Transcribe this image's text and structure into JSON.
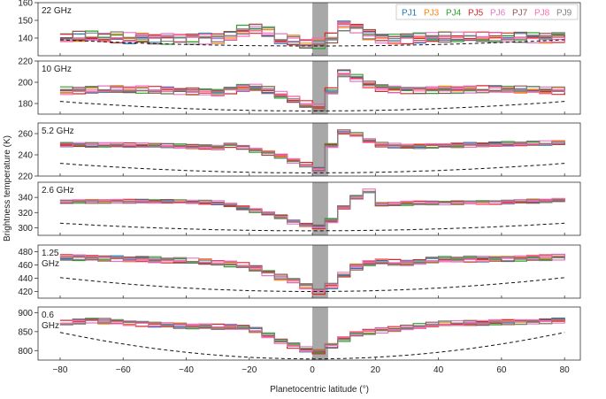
{
  "chart_data": {
    "type": "line",
    "xlabel": "Planetocentric latitude (°)",
    "ylabel": "Brightness temperature (K)",
    "xlim": [
      -87,
      85
    ],
    "x_ticks": [
      -80,
      -60,
      -40,
      -20,
      0,
      20,
      40,
      60,
      80
    ],
    "shaded_region": [
      0,
      5
    ],
    "legend": {
      "placement": "top-right"
    },
    "series_styles": [
      {
        "name": "PJ1",
        "color": "#1f77b4"
      },
      {
        "name": "PJ3",
        "color": "#ff7f0e"
      },
      {
        "name": "PJ4",
        "color": "#2ca02c"
      },
      {
        "name": "PJ5",
        "color": "#d62728"
      },
      {
        "name": "PJ6",
        "color": "#e377c2"
      },
      {
        "name": "PJ7",
        "color": "#8c564b"
      },
      {
        "name": "PJ8",
        "color": "#ff69b4"
      },
      {
        "name": "PJ9",
        "color": "#7f7f7f"
      }
    ],
    "panels": [
      {
        "label": "22 GHz",
        "ylim": [
          130,
          160
        ],
        "yticks": [
          140,
          150,
          160
        ],
        "baseline": {
          "x": [
            -80,
            0,
            80
          ],
          "y": [
            139,
            135.5,
            139
          ]
        },
        "profile": {
          "x": [
            -80,
            -70,
            -60,
            -40,
            -30,
            -25,
            -20,
            -15,
            -10,
            -5,
            0,
            5,
            10,
            15,
            20,
            30,
            40,
            60,
            80
          ],
          "y": [
            140,
            140.5,
            140,
            140,
            140,
            141,
            146,
            144,
            139,
            138,
            136,
            138,
            147,
            146,
            140,
            140,
            140.5,
            140,
            140.5
          ]
        },
        "spread": 3.5
      },
      {
        "label": "10 GHz",
        "ylim": [
          170,
          220
        ],
        "yticks": [
          180,
          200,
          220
        ],
        "baseline": {
          "x": [
            -80,
            0,
            80
          ],
          "y": [
            182,
            173,
            182
          ]
        },
        "profile": {
          "x": [
            -80,
            -60,
            -40,
            -30,
            -20,
            -15,
            -10,
            -5,
            0,
            3,
            5,
            8,
            10,
            15,
            20,
            30,
            40,
            60,
            80
          ],
          "y": [
            192,
            193,
            192,
            191,
            196,
            194,
            188,
            182,
            177,
            175,
            184,
            206,
            208,
            203,
            195,
            193,
            193,
            193,
            192
          ]
        },
        "spread": 4
      },
      {
        "label": "5.2 GHz",
        "ylim": [
          220,
          270
        ],
        "yticks": [
          220,
          240,
          260
        ],
        "baseline": {
          "x": [
            -80,
            0,
            80
          ],
          "y": [
            232,
            223,
            232
          ]
        },
        "profile": {
          "x": [
            -80,
            -60,
            -40,
            -30,
            -25,
            -20,
            -10,
            -5,
            0,
            3,
            5,
            7,
            10,
            15,
            20,
            30,
            40,
            60,
            80
          ],
          "y": [
            250,
            249,
            248,
            247,
            250,
            246,
            239,
            233,
            229,
            224,
            235,
            262,
            261,
            258,
            250,
            248,
            249,
            250,
            251
          ]
        },
        "spread": 2.5
      },
      {
        "label": "2.6 GHz",
        "ylim": [
          290,
          360
        ],
        "yticks": [
          300,
          320,
          340
        ],
        "baseline": {
          "x": [
            -80,
            0,
            80
          ],
          "y": [
            306,
            296,
            306
          ]
        },
        "profile": {
          "x": [
            -80,
            -60,
            -40,
            -30,
            -20,
            -10,
            -5,
            0,
            3,
            5,
            10,
            15,
            18,
            20,
            30,
            40,
            60,
            80
          ],
          "y": [
            335,
            335,
            334,
            333,
            325,
            315,
            306,
            303,
            300,
            305,
            327,
            343,
            348,
            330,
            332,
            333,
            334,
            336
          ]
        },
        "spread": 3
      },
      {
        "label": "1.25\nGHz",
        "ylim": [
          410,
          490
        ],
        "yticks": [
          420,
          440,
          460,
          480
        ],
        "baseline": {
          "x": [
            -80,
            0,
            80
          ],
          "y": [
            441,
            420,
            441
          ]
        },
        "profile": {
          "x": [
            -80,
            -60,
            -40,
            -30,
            -20,
            -10,
            -5,
            0,
            3,
            5,
            10,
            15,
            20,
            30,
            40,
            60,
            80
          ],
          "y": [
            472,
            470,
            466,
            463,
            458,
            442,
            435,
            425,
            419,
            425,
            445,
            460,
            465,
            462,
            468,
            470,
            472
          ]
        },
        "spread": 5
      },
      {
        "label": "0.6\nGHz",
        "ylim": [
          775,
          915
        ],
        "yticks": [
          800,
          850,
          900
        ],
        "baseline": {
          "x": [
            -80,
            0,
            80
          ],
          "y": [
            848,
            778,
            848
          ]
        },
        "profile": {
          "x": [
            -80,
            -70,
            -60,
            -40,
            -30,
            -20,
            -10,
            -5,
            0,
            3,
            5,
            10,
            15,
            20,
            30,
            40,
            60,
            80
          ],
          "y": [
            870,
            880,
            875,
            865,
            862,
            860,
            825,
            810,
            800,
            797,
            810,
            832,
            848,
            852,
            860,
            870,
            875,
            880
          ]
        },
        "spread": 8
      }
    ]
  }
}
